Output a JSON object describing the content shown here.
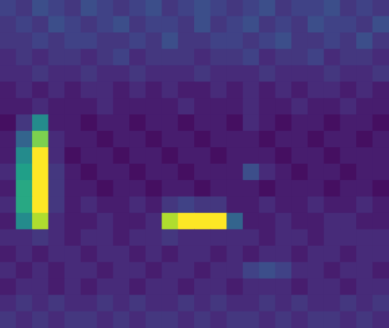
{
  "chart_data": {
    "type": "heatmap",
    "tick_labels": false,
    "zlim": [
      0,
      25
    ],
    "cells": [
      [
        5,
        4,
        6,
        5,
        4,
        6,
        5,
        4,
        5,
        6,
        4,
        5,
        6,
        5,
        4,
        5,
        6,
        4,
        5,
        5,
        6,
        4,
        5,
        4
      ],
      [
        4,
        5,
        4,
        6,
        5,
        4,
        5,
        6,
        4,
        5,
        5,
        4,
        6,
        4,
        5,
        6,
        4,
        5,
        4,
        6,
        5,
        5,
        4,
        6
      ],
      [
        4,
        4,
        5,
        4,
        5,
        5,
        4,
        4,
        5,
        4,
        6,
        4,
        4,
        5,
        5,
        4,
        5,
        6,
        4,
        4,
        5,
        4,
        6,
        4
      ],
      [
        3,
        4,
        3,
        4,
        4,
        3,
        4,
        5,
        3,
        4,
        4,
        4,
        3,
        4,
        4,
        5,
        3,
        4,
        4,
        5,
        3,
        4,
        4,
        3
      ],
      [
        3,
        3,
        4,
        3,
        3,
        4,
        3,
        3,
        4,
        3,
        3,
        3,
        4,
        3,
        3,
        3,
        4,
        3,
        3,
        3,
        4,
        3,
        3,
        4
      ],
      [
        2,
        3,
        2,
        3,
        2,
        3,
        3,
        2,
        3,
        2,
        3,
        2,
        2,
        3,
        2,
        3,
        2,
        3,
        2,
        3,
        3,
        2,
        3,
        2
      ],
      [
        2,
        2,
        3,
        2,
        2,
        2,
        3,
        2,
        2,
        2,
        2,
        3,
        2,
        2,
        2,
        3,
        2,
        2,
        3,
        2,
        2,
        3,
        2,
        2
      ],
      [
        1,
        4,
        12,
        2,
        2,
        1,
        2,
        2,
        1,
        2,
        2,
        1,
        2,
        2,
        1,
        3,
        2,
        1,
        2,
        2,
        1,
        2,
        2,
        1
      ],
      [
        2,
        8,
        20,
        3,
        2,
        2,
        1,
        2,
        2,
        1,
        2,
        2,
        1,
        2,
        2,
        2,
        1,
        2,
        2,
        1,
        2,
        2,
        1,
        2
      ],
      [
        2,
        12,
        26,
        3,
        1,
        2,
        2,
        1,
        2,
        2,
        1,
        2,
        2,
        1,
        2,
        2,
        2,
        1,
        2,
        2,
        1,
        2,
        2,
        2
      ],
      [
        3,
        14,
        30,
        4,
        2,
        1,
        2,
        2,
        1,
        2,
        2,
        1,
        2,
        2,
        2,
        6,
        3,
        2,
        1,
        2,
        2,
        1,
        2,
        2
      ],
      [
        2,
        15,
        30,
        4,
        2,
        2,
        1,
        2,
        2,
        1,
        2,
        2,
        1,
        2,
        2,
        2,
        1,
        2,
        2,
        2,
        1,
        2,
        2,
        1
      ],
      [
        3,
        15,
        30,
        4,
        2,
        3,
        2,
        2,
        3,
        2,
        4,
        5,
        4,
        4,
        2,
        2,
        3,
        2,
        2,
        3,
        2,
        2,
        3,
        2
      ],
      [
        2,
        12,
        22,
        3,
        2,
        2,
        3,
        2,
        2,
        3,
        22,
        30,
        28,
        25,
        8,
        2,
        2,
        3,
        2,
        2,
        3,
        3,
        2,
        2
      ],
      [
        3,
        3,
        4,
        3,
        2,
        3,
        3,
        2,
        3,
        3,
        4,
        3,
        3,
        3,
        3,
        3,
        2,
        3,
        3,
        2,
        3,
        3,
        3,
        3
      ],
      [
        2,
        3,
        2,
        3,
        3,
        2,
        3,
        3,
        2,
        3,
        2,
        3,
        3,
        2,
        3,
        2,
        3,
        3,
        2,
        3,
        3,
        2,
        3,
        3
      ],
      [
        3,
        2,
        3,
        2,
        3,
        3,
        2,
        3,
        3,
        2,
        3,
        3,
        2,
        3,
        3,
        5,
        6,
        5,
        3,
        3,
        2,
        3,
        3,
        2
      ],
      [
        2,
        3,
        3,
        2,
        3,
        2,
        3,
        3,
        2,
        3,
        3,
        2,
        3,
        3,
        2,
        3,
        3,
        3,
        2,
        3,
        3,
        2,
        3,
        3
      ],
      [
        3,
        4,
        3,
        4,
        3,
        3,
        4,
        3,
        4,
        3,
        3,
        4,
        3,
        4,
        3,
        3,
        4,
        3,
        4,
        3,
        3,
        4,
        3,
        4
      ],
      [
        4,
        3,
        4,
        3,
        4,
        4,
        3,
        4,
        3,
        4,
        4,
        3,
        4,
        3,
        4,
        4,
        3,
        4,
        3,
        4,
        4,
        3,
        4,
        3
      ]
    ]
  }
}
